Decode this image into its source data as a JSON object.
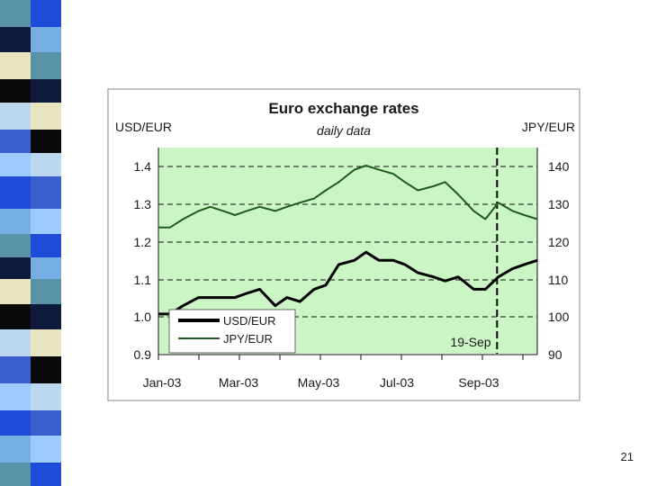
{
  "slide": {
    "number": "21",
    "strip_colors": [
      "#5a93a8",
      "#3a5fcf",
      "#0e1a3a",
      "#9ecbff",
      "#e8e4c2",
      "#1e4bd8",
      "#0a0a0a",
      "#76aee3",
      "#bcd8f0"
    ]
  },
  "chart_data": {
    "type": "line",
    "title": "Euro exchange rates",
    "subtitle": "daily data",
    "ylabel_left": "USD/EUR",
    "ylabel_right": "JPY/EUR",
    "ylim_left": [
      0.9,
      1.4
    ],
    "ylim_right": [
      90,
      140
    ],
    "yticks_left": [
      "1.4",
      "1.3",
      "1.2",
      "1.1",
      "1.0",
      "0.9"
    ],
    "yticks_right": [
      "140",
      "130",
      "120",
      "110",
      "100",
      "90"
    ],
    "xticks": [
      "Jan-03",
      "Mar-03",
      "May-03",
      "Jul-03",
      "Sep-03"
    ],
    "x_range": [
      "2003-01-01",
      "2003-10-20"
    ],
    "grid": true,
    "legend_position": "bottom-left",
    "annotation": {
      "label": "19-Sep",
      "x": "2003-09-19"
    },
    "series": [
      {
        "name": "USD/EUR",
        "axis": "left",
        "color": "#000000",
        "x": [
          "2003-01-01",
          "2003-01-10",
          "2003-01-20",
          "2003-02-01",
          "2003-02-10",
          "2003-02-20",
          "2003-03-01",
          "2003-03-10",
          "2003-03-20",
          "2003-04-01",
          "2003-04-10",
          "2003-04-20",
          "2003-05-01",
          "2003-05-10",
          "2003-05-20",
          "2003-06-01",
          "2003-06-10",
          "2003-06-20",
          "2003-07-01",
          "2003-07-10",
          "2003-07-20",
          "2003-08-01",
          "2003-08-10",
          "2003-08-20",
          "2003-09-01",
          "2003-09-10",
          "2003-09-20",
          "2003-10-01",
          "2003-10-10",
          "2003-10-20"
        ],
        "values": [
          1.04,
          1.04,
          1.06,
          1.08,
          1.08,
          1.08,
          1.08,
          1.09,
          1.1,
          1.06,
          1.08,
          1.07,
          1.1,
          1.11,
          1.16,
          1.17,
          1.19,
          1.17,
          1.17,
          1.16,
          1.14,
          1.13,
          1.12,
          1.13,
          1.1,
          1.1,
          1.13,
          1.15,
          1.16,
          1.17
        ]
      },
      {
        "name": "JPY/EUR",
        "axis": "right",
        "color": "#1f5a1f",
        "x": [
          "2003-01-01",
          "2003-01-10",
          "2003-01-20",
          "2003-02-01",
          "2003-02-10",
          "2003-02-20",
          "2003-03-01",
          "2003-03-10",
          "2003-03-20",
          "2003-04-01",
          "2003-04-10",
          "2003-04-20",
          "2003-05-01",
          "2003-05-10",
          "2003-05-20",
          "2003-06-01",
          "2003-06-10",
          "2003-06-20",
          "2003-07-01",
          "2003-07-10",
          "2003-07-20",
          "2003-08-01",
          "2003-08-10",
          "2003-08-20",
          "2003-09-01",
          "2003-09-10",
          "2003-09-20",
          "2003-10-01",
          "2003-10-10",
          "2003-10-20"
        ],
        "values": [
          125,
          125,
          127,
          129,
          130,
          129,
          128,
          129,
          130,
          129,
          130,
          131,
          132,
          134,
          136,
          139,
          140,
          139,
          138,
          136,
          134,
          135,
          136,
          133,
          129,
          127,
          131,
          129,
          128,
          127
        ]
      }
    ]
  }
}
